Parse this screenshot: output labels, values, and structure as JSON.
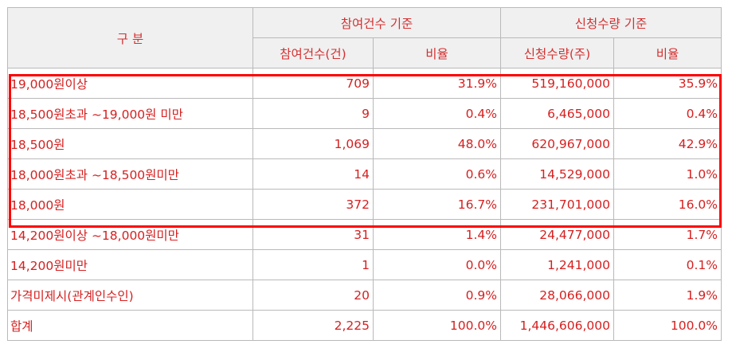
{
  "header": {
    "category": "구 분",
    "group_count": "참여건수 기준",
    "group_qty": "신청수량 기준",
    "count_col": "참여건수(건)",
    "count_ratio_col": "비율",
    "qty_col": "신청수량(주)",
    "qty_ratio_col": "비율"
  },
  "rows": [
    {
      "label": "19,000원이상",
      "count": "709",
      "count_ratio": "31.9%",
      "qty": "519,160,000",
      "qty_ratio": "35.9%"
    },
    {
      "label": "18,500원초과 ~19,000원 미만",
      "count": "9",
      "count_ratio": "0.4%",
      "qty": "6,465,000",
      "qty_ratio": "0.4%"
    },
    {
      "label": "18,500원",
      "count": "1,069",
      "count_ratio": "48.0%",
      "qty": "620,967,000",
      "qty_ratio": "42.9%"
    },
    {
      "label": "18,000원초과 ~18,500원미만",
      "count": "14",
      "count_ratio": "0.6%",
      "qty": "14,529,000",
      "qty_ratio": "1.0%"
    },
    {
      "label": "18,000원",
      "count": "372",
      "count_ratio": "16.7%",
      "qty": "231,701,000",
      "qty_ratio": "16.0%"
    },
    {
      "label": "14,200원이상 ~18,000원미만",
      "count": "31",
      "count_ratio": "1.4%",
      "qty": "24,477,000",
      "qty_ratio": "1.7%"
    },
    {
      "label": "14,200원미만",
      "count": "1",
      "count_ratio": "0.0%",
      "qty": "1,241,000",
      "qty_ratio": "0.1%"
    },
    {
      "label": "가격미제시(관계인수인)",
      "count": "20",
      "count_ratio": "0.9%",
      "qty": "28,066,000",
      "qty_ratio": "1.9%"
    },
    {
      "label": "합계",
      "count": "2,225",
      "count_ratio": "100.0%",
      "qty": "1,446,606,000",
      "qty_ratio": "100.0%"
    }
  ],
  "highlight": {
    "color": "#ff0000",
    "rows_covered": [
      0,
      4
    ]
  },
  "colors": {
    "text": "#d62020",
    "header_bg": "#f0f0f0",
    "border": "#b9b9b9"
  }
}
